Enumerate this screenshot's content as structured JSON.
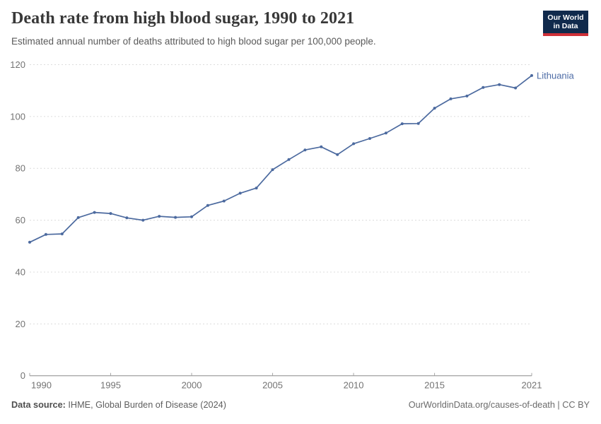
{
  "header": {
    "title": "Death rate from high blood sugar, 1990 to 2021",
    "subtitle": "Estimated annual number of deaths attributed to high blood sugar per 100,000 people."
  },
  "logo": {
    "line1": "Our World",
    "line2": "in Data",
    "bg_color": "#102a4c",
    "accent_color": "#cf3038"
  },
  "chart_data": {
    "type": "line",
    "title": "Death rate from high blood sugar, 1990 to 2021",
    "subtitle": "Estimated annual number of deaths attributed to high blood sugar per 100,000 people.",
    "xlabel": "",
    "ylabel": "",
    "grid": true,
    "legend_position": "end-of-line-label",
    "xlim": [
      1990,
      2021
    ],
    "ylim": [
      0,
      120
    ],
    "yticks": [
      0,
      20,
      40,
      60,
      80,
      100,
      120
    ],
    "xticks": [
      1990,
      1995,
      2000,
      2005,
      2010,
      2015,
      2021
    ],
    "x": [
      1990,
      1991,
      1992,
      1993,
      1994,
      1995,
      1996,
      1997,
      1998,
      1999,
      2000,
      2001,
      2002,
      2003,
      2004,
      2005,
      2006,
      2007,
      2008,
      2009,
      2010,
      2011,
      2012,
      2013,
      2014,
      2015,
      2016,
      2017,
      2018,
      2019,
      2020,
      2021
    ],
    "series": [
      {
        "name": "Lithuania",
        "color": "#4c6a9f",
        "label_color": "#4e6ca6",
        "values": [
          51.5,
          54.5,
          54.7,
          61.0,
          63.0,
          62.6,
          60.9,
          60.0,
          61.5,
          61.1,
          61.3,
          65.7,
          67.4,
          70.4,
          72.4,
          79.5,
          83.4,
          87.1,
          88.3,
          85.3,
          89.5,
          91.5,
          93.6,
          97.2,
          97.3,
          103.2,
          106.8,
          107.9,
          111.2,
          112.3,
          111.0,
          115.8
        ]
      }
    ],
    "colors": {
      "grid": "#dcdcdc",
      "axis": "#8c8c8c",
      "tick": "#a6a6a6",
      "tick_label": "#737373"
    }
  },
  "footer": {
    "source_label": "Data source:",
    "source_text": "IHME, Global Burden of Disease (2024)",
    "credit": "OurWorldinData.org/causes-of-death | CC BY"
  }
}
